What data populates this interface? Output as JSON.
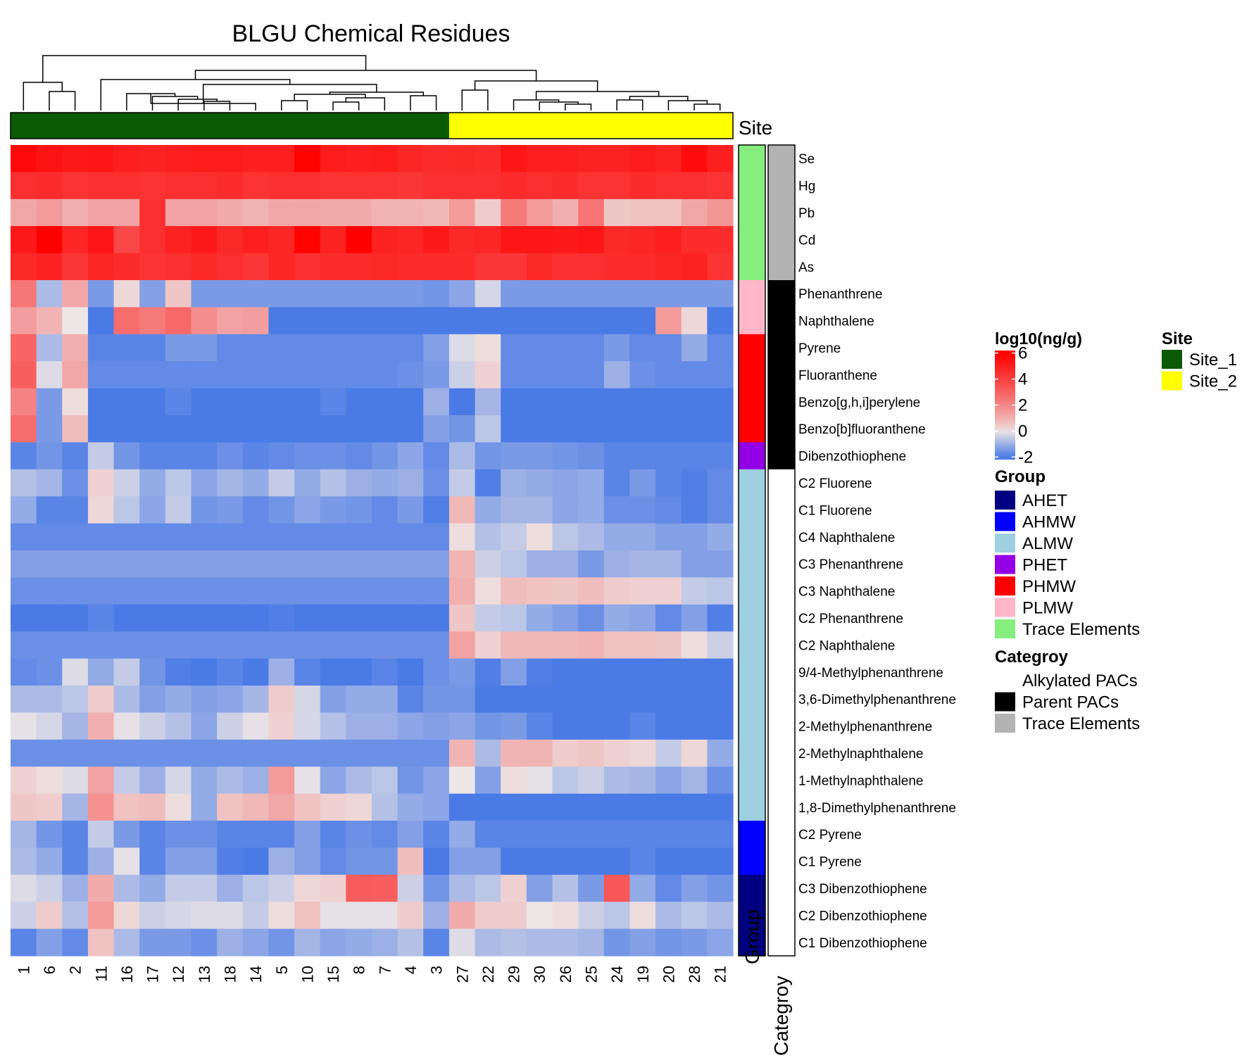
{
  "chart_data": {
    "type": "heatmap",
    "title": "BLGU Chemical Residues",
    "columns": [
      "1",
      "6",
      "2",
      "11",
      "16",
      "17",
      "12",
      "13",
      "18",
      "14",
      "5",
      "10",
      "15",
      "8",
      "7",
      "4",
      "3",
      "27",
      "22",
      "29",
      "30",
      "26",
      "25",
      "24",
      "19",
      "20",
      "28",
      "21"
    ],
    "rows": [
      "Se",
      "Hg",
      "Pb",
      "Cd",
      "As",
      "Phenanthrene",
      "Naphthalene",
      "Pyrene",
      "Fluoranthene",
      "Benzo[g,h,i]perylene",
      "Benzo[b]fluoranthene",
      "Dibenzothiophene",
      "C2 Fluorene",
      "C1 Fluorene",
      "C4 Naphthalene",
      "C3 Phenanthrene",
      "C3 Naphthalene",
      "C2 Phenanthrene",
      "C2 Naphthalene",
      "9/4-Methylphenanthrene",
      "3,6-Dimethylphenanthrene",
      "2-Methylphenanthrene",
      "2-Methylnaphthalene",
      "1-Methylnaphthalene",
      "1,8-Dimethylphenanthrene",
      "C2 Pyrene",
      "C1 Pyrene",
      "C3 Dibenzothiophene",
      "C2 Dibenzothiophene",
      "C1 Dibenzothiophene"
    ],
    "values": [
      [
        5.7,
        5.4,
        5.2,
        5.3,
        5.0,
        4.9,
        5.0,
        5.1,
        5.1,
        5.0,
        5.0,
        5.9,
        5.1,
        5.0,
        5.1,
        4.8,
        4.6,
        4.7,
        4.6,
        5.3,
        5.0,
        5.0,
        4.9,
        4.9,
        5.1,
        4.9,
        5.6,
        5.0
      ],
      [
        4.5,
        4.6,
        4.4,
        4.5,
        4.5,
        4.4,
        4.5,
        4.5,
        4.6,
        4.4,
        4.5,
        4.5,
        4.4,
        4.4,
        4.4,
        4.3,
        4.5,
        4.5,
        4.5,
        4.6,
        4.5,
        4.6,
        4.4,
        4.4,
        4.6,
        4.5,
        4.5,
        4.4
      ],
      [
        1.2,
        1.5,
        1.0,
        1.3,
        1.3,
        4.5,
        1.3,
        1.3,
        1.1,
        0.9,
        1.2,
        1.2,
        1.1,
        1.1,
        0.9,
        0.9,
        0.8,
        1.5,
        0.4,
        2.3,
        1.5,
        1.0,
        2.5,
        0.5,
        0.6,
        0.6,
        1.2,
        1.6
      ],
      [
        5.2,
        6.0,
        4.8,
        5.3,
        3.8,
        4.5,
        4.9,
        5.2,
        4.7,
        5.0,
        4.8,
        5.9,
        4.9,
        6.2,
        4.9,
        4.8,
        5.2,
        4.7,
        4.8,
        5.3,
        5.3,
        5.2,
        5.3,
        4.7,
        4.8,
        5.0,
        4.6,
        4.6
      ],
      [
        4.7,
        4.9,
        4.3,
        4.8,
        4.6,
        4.4,
        4.5,
        4.7,
        4.5,
        4.3,
        4.8,
        4.5,
        4.6,
        4.6,
        4.7,
        4.6,
        4.6,
        4.6,
        4.3,
        4.3,
        4.7,
        4.5,
        4.5,
        4.6,
        4.6,
        4.8,
        4.9,
        4.4
      ],
      [
        2.4,
        -0.8,
        1.2,
        -1.4,
        0.2,
        -1.3,
        0.5,
        -1.4,
        -1.4,
        -1.4,
        -1.4,
        -1.4,
        -1.4,
        -1.4,
        -1.4,
        -1.4,
        -1.5,
        -1.2,
        -0.3,
        -1.4,
        -1.4,
        -1.4,
        -1.4,
        -1.4,
        -1.4,
        -1.4,
        -1.4,
        -1.4
      ],
      [
        1.4,
        0.9,
        0.0,
        -2.0,
        2.7,
        2.3,
        2.8,
        1.8,
        1.3,
        1.4,
        -2.0,
        -2.0,
        -2.0,
        -2.0,
        -2.0,
        -2.0,
        -2.0,
        -2.0,
        -2.0,
        -2.0,
        -2.0,
        -2.0,
        -2.0,
        -2.0,
        -2.0,
        1.5,
        0.2,
        -2.0
      ],
      [
        2.9,
        -0.8,
        1.0,
        -1.8,
        -1.8,
        -1.8,
        -1.4,
        -1.4,
        -1.7,
        -1.7,
        -1.7,
        -1.7,
        -1.7,
        -1.7,
        -1.7,
        -1.7,
        -1.3,
        -0.2,
        0.1,
        -1.7,
        -1.7,
        -1.7,
        -1.7,
        -1.4,
        -1.7,
        -1.7,
        -1.1,
        -1.7
      ],
      [
        3.1,
        -0.2,
        1.2,
        -1.7,
        -1.7,
        -1.7,
        -1.7,
        -1.7,
        -1.7,
        -1.7,
        -1.7,
        -1.7,
        -1.7,
        -1.7,
        -1.7,
        -1.6,
        -1.4,
        -0.4,
        0.3,
        -1.7,
        -1.7,
        -1.7,
        -1.7,
        -1.0,
        -1.6,
        -1.7,
        -1.7,
        -1.7
      ],
      [
        2.1,
        -1.4,
        0.1,
        -2.0,
        -2.0,
        -2.0,
        -1.8,
        -2.0,
        -2.0,
        -2.0,
        -2.0,
        -2.0,
        -1.8,
        -2.0,
        -2.0,
        -2.0,
        -1.0,
        -2.0,
        -0.9,
        -2.0,
        -2.0,
        -2.0,
        -2.0,
        -2.0,
        -2.0,
        -2.0,
        -2.0,
        -2.0
      ],
      [
        2.7,
        -1.4,
        0.7,
        -2.0,
        -2.0,
        -2.0,
        -2.0,
        -2.0,
        -2.0,
        -2.0,
        -2.0,
        -2.0,
        -2.0,
        -2.0,
        -2.0,
        -2.0,
        -1.3,
        -1.5,
        -0.6,
        -2.1,
        -2.1,
        -2.1,
        -2.1,
        -2.0,
        -2.1,
        -2.0,
        -2.0,
        -2.0
      ],
      [
        -1.8,
        -1.5,
        -1.8,
        -0.5,
        -1.5,
        -1.8,
        -1.8,
        -1.8,
        -1.6,
        -1.8,
        -1.7,
        -1.6,
        -1.6,
        -1.7,
        -1.5,
        -1.2,
        -1.7,
        -0.8,
        -1.5,
        -1.4,
        -1.4,
        -1.5,
        -1.6,
        -1.8,
        -1.8,
        -1.8,
        -1.8,
        -1.8
      ],
      [
        -0.7,
        -0.9,
        -1.6,
        0.3,
        -0.4,
        -1.1,
        -0.6,
        -1.2,
        -0.9,
        -1.1,
        -0.5,
        -1.1,
        -0.7,
        -1.0,
        -1.1,
        -1.0,
        -1.6,
        -0.5,
        -1.9,
        -1.0,
        -1.1,
        -1.2,
        -1.1,
        -1.8,
        -1.4,
        -1.8,
        -1.9,
        -1.7
      ],
      [
        -1.1,
        -1.8,
        -1.8,
        0.2,
        -0.6,
        -1.2,
        -0.5,
        -1.5,
        -1.4,
        -1.7,
        -1.5,
        -1.2,
        -1.4,
        -1.5,
        -1.7,
        -1.4,
        -1.9,
        0.8,
        -1.1,
        -0.9,
        -0.9,
        -1.2,
        -1.1,
        -1.6,
        -1.6,
        -1.7,
        -1.9,
        -1.7
      ],
      [
        -1.7,
        -1.7,
        -1.7,
        -1.7,
        -1.7,
        -1.7,
        -1.7,
        -1.7,
        -1.7,
        -1.7,
        -1.7,
        -1.7,
        -1.7,
        -1.7,
        -1.7,
        -1.7,
        -1.7,
        0.1,
        -0.7,
        -0.5,
        0.1,
        -0.6,
        -0.8,
        -1.1,
        -1.1,
        -1.3,
        -1.3,
        -1.1
      ],
      [
        -1.3,
        -1.3,
        -1.3,
        -1.3,
        -1.3,
        -1.3,
        -1.3,
        -1.3,
        -1.3,
        -1.3,
        -1.3,
        -1.3,
        -1.3,
        -1.3,
        -1.3,
        -1.3,
        -1.3,
        0.9,
        -0.4,
        -0.6,
        -1.0,
        -1.0,
        -1.4,
        -1.0,
        -0.9,
        -0.9,
        -1.3,
        -1.3
      ],
      [
        -1.6,
        -1.6,
        -1.6,
        -1.6,
        -1.6,
        -1.6,
        -1.6,
        -1.6,
        -1.6,
        -1.6,
        -1.6,
        -1.6,
        -1.6,
        -1.6,
        -1.6,
        -1.6,
        -1.6,
        1.0,
        0.1,
        0.7,
        0.6,
        0.5,
        0.7,
        0.4,
        0.3,
        0.3,
        -0.5,
        -0.6
      ],
      [
        -2.0,
        -2.0,
        -2.0,
        -1.8,
        -2.0,
        -2.0,
        -2.0,
        -2.0,
        -2.0,
        -2.0,
        -1.9,
        -2.0,
        -2.0,
        -2.0,
        -2.0,
        -2.0,
        -2.0,
        0.5,
        -0.5,
        -0.6,
        -1.1,
        -1.3,
        -1.6,
        -1.1,
        -1.2,
        -1.7,
        -1.3,
        -1.9
      ],
      [
        -1.6,
        -1.6,
        -1.6,
        -1.6,
        -1.6,
        -1.6,
        -1.6,
        -1.6,
        -1.6,
        -1.6,
        -1.6,
        -1.6,
        -1.6,
        -1.6,
        -1.6,
        -1.6,
        -1.6,
        1.3,
        0.3,
        0.8,
        0.8,
        0.8,
        0.9,
        0.6,
        0.6,
        0.5,
        0.1,
        -0.4
      ],
      [
        -1.7,
        -1.6,
        -0.2,
        -1.1,
        -0.5,
        -1.5,
        -1.9,
        -2.1,
        -1.8,
        -2.1,
        -1.0,
        -1.8,
        -2.0,
        -2.0,
        -1.8,
        -2.1,
        -1.6,
        -1.4,
        -1.9,
        -1.3,
        -1.9,
        -2.1,
        -2.1,
        -2.1,
        -2.1,
        -2.1,
        -2.1,
        -2.1
      ],
      [
        -0.8,
        -0.8,
        -0.6,
        0.4,
        -0.8,
        -1.3,
        -1.1,
        -1.3,
        -1.2,
        -0.9,
        0.4,
        -0.3,
        -1.3,
        -1.1,
        -1.1,
        -1.8,
        -1.5,
        -1.5,
        -2.1,
        -2.1,
        -2.1,
        -2.1,
        -2.1,
        -2.1,
        -2.1,
        -2.1,
        -2.1,
        -2.1
      ],
      [
        -0.1,
        -0.3,
        -0.9,
        1.0,
        -0.1,
        -0.4,
        -0.7,
        -1.2,
        -0.4,
        -0.1,
        0.3,
        -0.3,
        -0.7,
        -1.0,
        -1.0,
        -1.2,
        -1.3,
        -1.2,
        -1.5,
        -1.4,
        -1.8,
        -2.0,
        -2.0,
        -2.0,
        -1.8,
        -2.1,
        -2.1,
        -2.1
      ],
      [
        -1.6,
        -1.6,
        -1.6,
        -1.6,
        -1.6,
        -1.6,
        -1.6,
        -1.6,
        -1.6,
        -1.6,
        -1.6,
        -1.6,
        -1.6,
        -1.6,
        -1.6,
        -1.6,
        -1.6,
        0.9,
        -0.8,
        0.9,
        0.9,
        0.4,
        0.5,
        0.3,
        0.2,
        -0.5,
        0.2,
        -1.1
      ],
      [
        0.3,
        0.1,
        -0.2,
        1.3,
        -0.5,
        -1.0,
        -0.3,
        -1.1,
        -0.8,
        -1.0,
        1.5,
        -0.1,
        -1.2,
        -0.8,
        -0.6,
        -1.5,
        -1.2,
        0.0,
        -1.3,
        0.1,
        -0.1,
        -0.6,
        -0.4,
        -0.8,
        -0.9,
        -1.2,
        -0.9,
        -1.6
      ],
      [
        0.5,
        0.4,
        -0.9,
        1.7,
        0.6,
        0.7,
        0.1,
        -1.1,
        0.6,
        0.8,
        1.2,
        0.6,
        0.3,
        0.2,
        -0.7,
        -1.1,
        -1.2,
        -2.0,
        -2.0,
        -2.0,
        -2.0,
        -2.0,
        -2.0,
        -2.0,
        -2.0,
        -2.0,
        -2.0,
        -2.0
      ],
      [
        -0.9,
        -1.5,
        -1.8,
        -0.5,
        -1.4,
        -1.8,
        -1.6,
        -1.6,
        -1.8,
        -1.8,
        -1.8,
        -1.3,
        -1.8,
        -1.6,
        -1.7,
        -1.3,
        -1.8,
        -1.1,
        -1.8,
        -1.8,
        -1.8,
        -1.8,
        -1.8,
        -1.8,
        -1.8,
        -1.8,
        -1.8,
        -1.8
      ],
      [
        -0.8,
        -1.1,
        -1.8,
        -1.0,
        -0.1,
        -1.8,
        -1.3,
        -1.3,
        -1.9,
        -2.1,
        -1.0,
        -1.3,
        -1.7,
        -1.5,
        -1.5,
        0.7,
        -2.1,
        -1.3,
        -1.3,
        -2.1,
        -2.1,
        -2.1,
        -2.1,
        -2.1,
        -1.8,
        -2.1,
        -2.1,
        -2.1
      ],
      [
        -0.2,
        -0.4,
        -1.0,
        1.1,
        -0.8,
        -1.1,
        -0.5,
        -0.5,
        -1.0,
        -0.6,
        -0.4,
        0.2,
        0.3,
        3.2,
        3.1,
        -0.4,
        -1.5,
        -0.8,
        -0.6,
        0.3,
        -1.3,
        -0.7,
        -1.4,
        3.3,
        -1.1,
        -1.7,
        -1.3,
        -1.5
      ],
      [
        -0.4,
        0.4,
        -0.7,
        1.5,
        0.2,
        -0.4,
        -0.3,
        -0.2,
        -0.2,
        -0.5,
        0.1,
        0.6,
        -0.1,
        -0.1,
        -0.1,
        0.4,
        -1.0,
        1.1,
        0.4,
        0.4,
        0.0,
        0.1,
        -0.4,
        -0.6,
        0.1,
        -0.8,
        -0.6,
        -0.8
      ],
      [
        -1.8,
        -1.3,
        -1.7,
        0.6,
        -0.8,
        -1.4,
        -1.4,
        -1.6,
        -1.0,
        -1.2,
        -1.5,
        -0.9,
        -1.2,
        -1.1,
        -1.0,
        -0.7,
        -1.8,
        -0.2,
        -0.8,
        -0.7,
        -0.8,
        -0.8,
        -0.9,
        -1.5,
        -1.3,
        -1.5,
        -1.4,
        -1.2
      ]
    ],
    "site": [
      "Site_1",
      "Site_1",
      "Site_1",
      "Site_1",
      "Site_1",
      "Site_1",
      "Site_1",
      "Site_1",
      "Site_1",
      "Site_1",
      "Site_1",
      "Site_1",
      "Site_1",
      "Site_1",
      "Site_1",
      "Site_1",
      "Site_1",
      "Site_2",
      "Site_2",
      "Site_2",
      "Site_2",
      "Site_2",
      "Site_2",
      "Site_2",
      "Site_2",
      "Site_2",
      "Site_2",
      "Site_2"
    ],
    "group": [
      "Trace Elements",
      "Trace Elements",
      "Trace Elements",
      "Trace Elements",
      "Trace Elements",
      "PLMW",
      "PLMW",
      "PHMW",
      "PHMW",
      "PHMW",
      "PHMW",
      "PHET",
      "ALMW",
      "ALMW",
      "ALMW",
      "ALMW",
      "ALMW",
      "ALMW",
      "ALMW",
      "ALMW",
      "ALMW",
      "ALMW",
      "ALMW",
      "ALMW",
      "ALMW",
      "AHMW",
      "AHMW",
      "AHET",
      "AHET",
      "AHET"
    ],
    "category": [
      "Trace Elements",
      "Trace Elements",
      "Trace Elements",
      "Trace Elements",
      "Trace Elements",
      "Parent PACs",
      "Parent PACs",
      "Parent PACs",
      "Parent PACs",
      "Parent PACs",
      "Parent PACs",
      "Parent PACs",
      "Alkylated PACs",
      "Alkylated PACs",
      "Alkylated PACs",
      "Alkylated PACs",
      "Alkylated PACs",
      "Alkylated PACs",
      "Alkylated PACs",
      "Alkylated PACs",
      "Alkylated PACs",
      "Alkylated PACs",
      "Alkylated PACs",
      "Alkylated PACs",
      "Alkylated PACs",
      "Alkylated PACs",
      "Alkylated PACs",
      "Alkylated PACs",
      "Alkylated PACs",
      "Alkylated PACs"
    ],
    "color_scale": {
      "title": "log10(ng/g)",
      "ticks": [
        6,
        4,
        2,
        0,
        -2
      ],
      "min": -2.2,
      "max": 6.2,
      "low": "#4a7ae6",
      "mid": "#ede6e6",
      "high": "#ff0000"
    },
    "legend_site": {
      "title": "Site",
      "items": [
        {
          "label": "Site_1",
          "color": "#0b5a05"
        },
        {
          "label": "Site_2",
          "color": "#ffff00"
        }
      ]
    },
    "legend_group": {
      "title": "Group",
      "items": [
        {
          "label": "AHET",
          "color": "#000080"
        },
        {
          "label": "AHMW",
          "color": "#0000ff"
        },
        {
          "label": "ALMW",
          "color": "#9fd0df"
        },
        {
          "label": "PHET",
          "color": "#9400e6"
        },
        {
          "label": "PHMW",
          "color": "#ff0000"
        },
        {
          "label": "PLMW",
          "color": "#ffb6c8"
        },
        {
          "label": "Trace Elements",
          "color": "#86ee7e"
        }
      ]
    },
    "legend_category": {
      "title": "Categroy",
      "items": [
        {
          "label": "Alkylated PACs",
          "color": "#ffffff"
        },
        {
          "label": "Parent PACs",
          "color": "#000000"
        },
        {
          "label": "Trace Elements",
          "color": "#b3b3b3"
        }
      ]
    },
    "annotation_labels": {
      "site": "Site",
      "group": "Group",
      "category": "Categroy"
    }
  }
}
